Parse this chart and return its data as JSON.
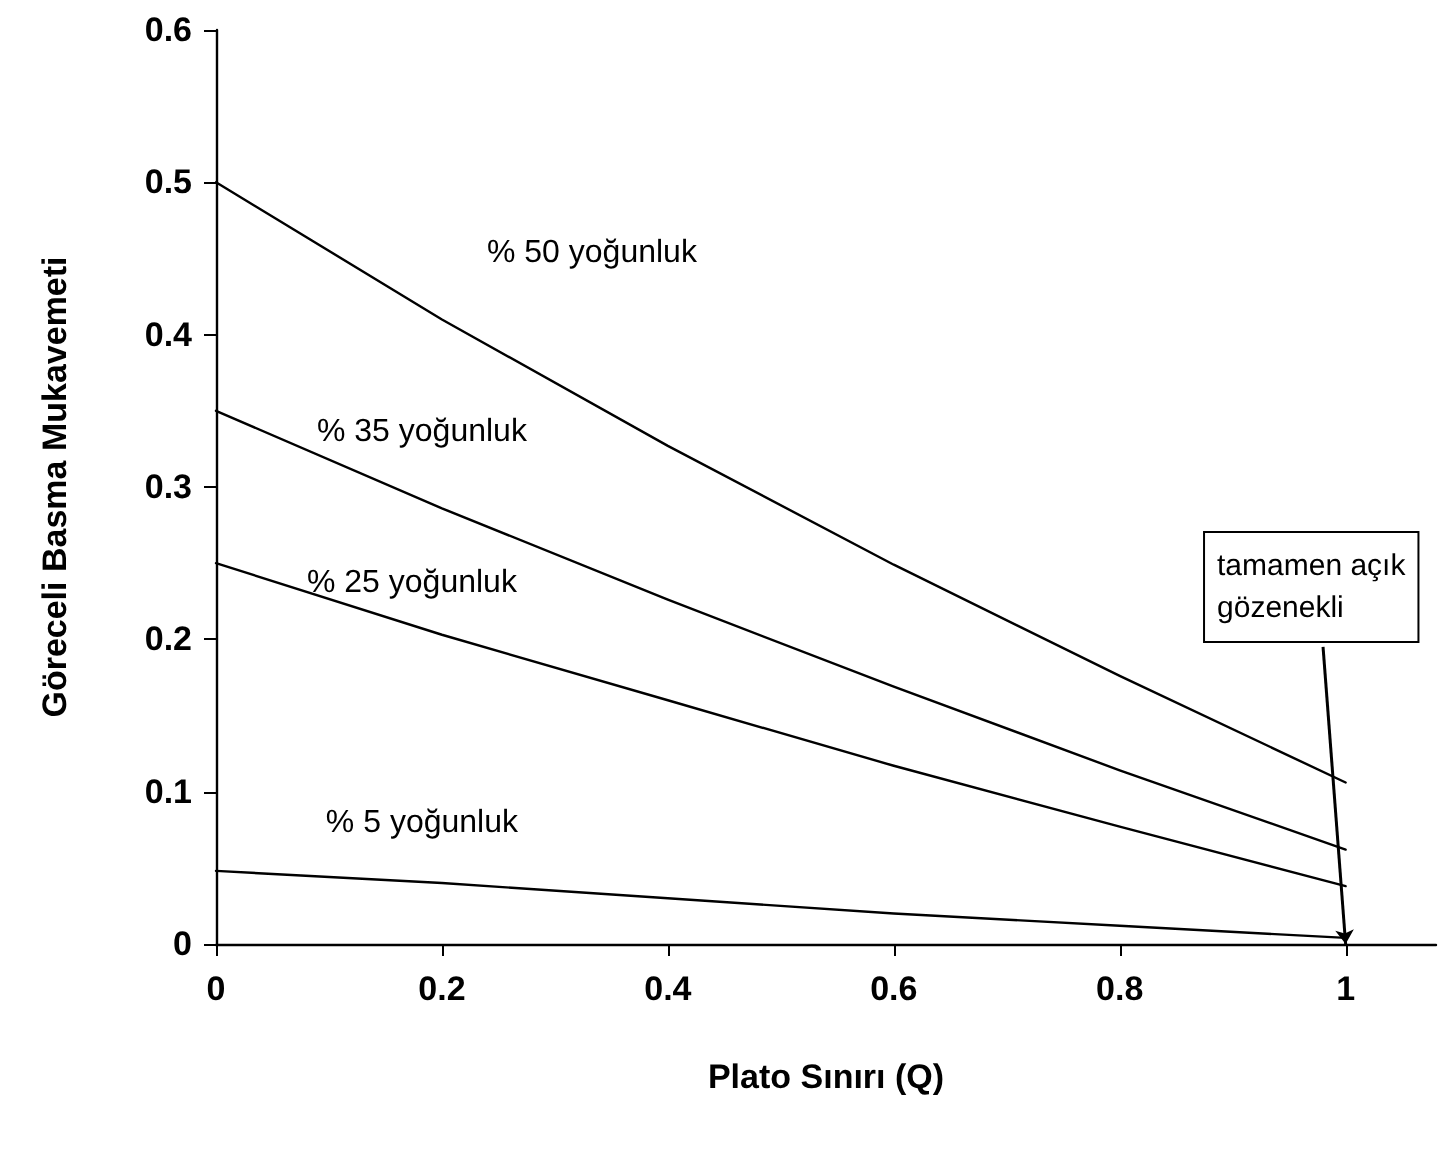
{
  "chart_data": {
    "type": "line",
    "xlabel": "Plato Sınırı (Q)",
    "ylabel": "Göreceli Basma Mukavemeti",
    "x": [
      0,
      0.2,
      0.4,
      0.6,
      0.8,
      1
    ],
    "series": [
      {
        "name": "% 50 yoğunluk",
        "color": "#000000",
        "values": [
          0.5,
          0.41,
          0.327,
          0.249,
          0.176,
          0.106
        ]
      },
      {
        "name": "% 35 yoğunluk",
        "color": "#000000",
        "values": [
          0.35,
          0.286,
          0.226,
          0.169,
          0.114,
          0.062
        ]
      },
      {
        "name": "% 25 yoğunluk",
        "color": "#000000",
        "values": [
          0.25,
          0.203,
          0.16,
          0.117,
          0.077,
          0.038
        ]
      },
      {
        "name": "% 5 yoğunluk",
        "color": "#000000",
        "values": [
          0.048,
          0.04,
          0.03,
          0.02,
          0.012,
          0.004
        ]
      }
    ],
    "annotations": [
      {
        "text": "tamamen açık\ngözenekli",
        "x": 1,
        "y": 0
      }
    ],
    "xlim": [
      0,
      1.08
    ],
    "xticks": [
      0,
      0.2,
      0.4,
      0.6,
      0.8,
      1
    ],
    "ylim": [
      0,
      0.6
    ],
    "yticks": [
      0,
      0.1,
      0.2,
      0.3,
      0.4,
      0.5,
      0.6
    ],
    "grid": false,
    "legend": false,
    "marker": "none",
    "line_style": "solid"
  }
}
